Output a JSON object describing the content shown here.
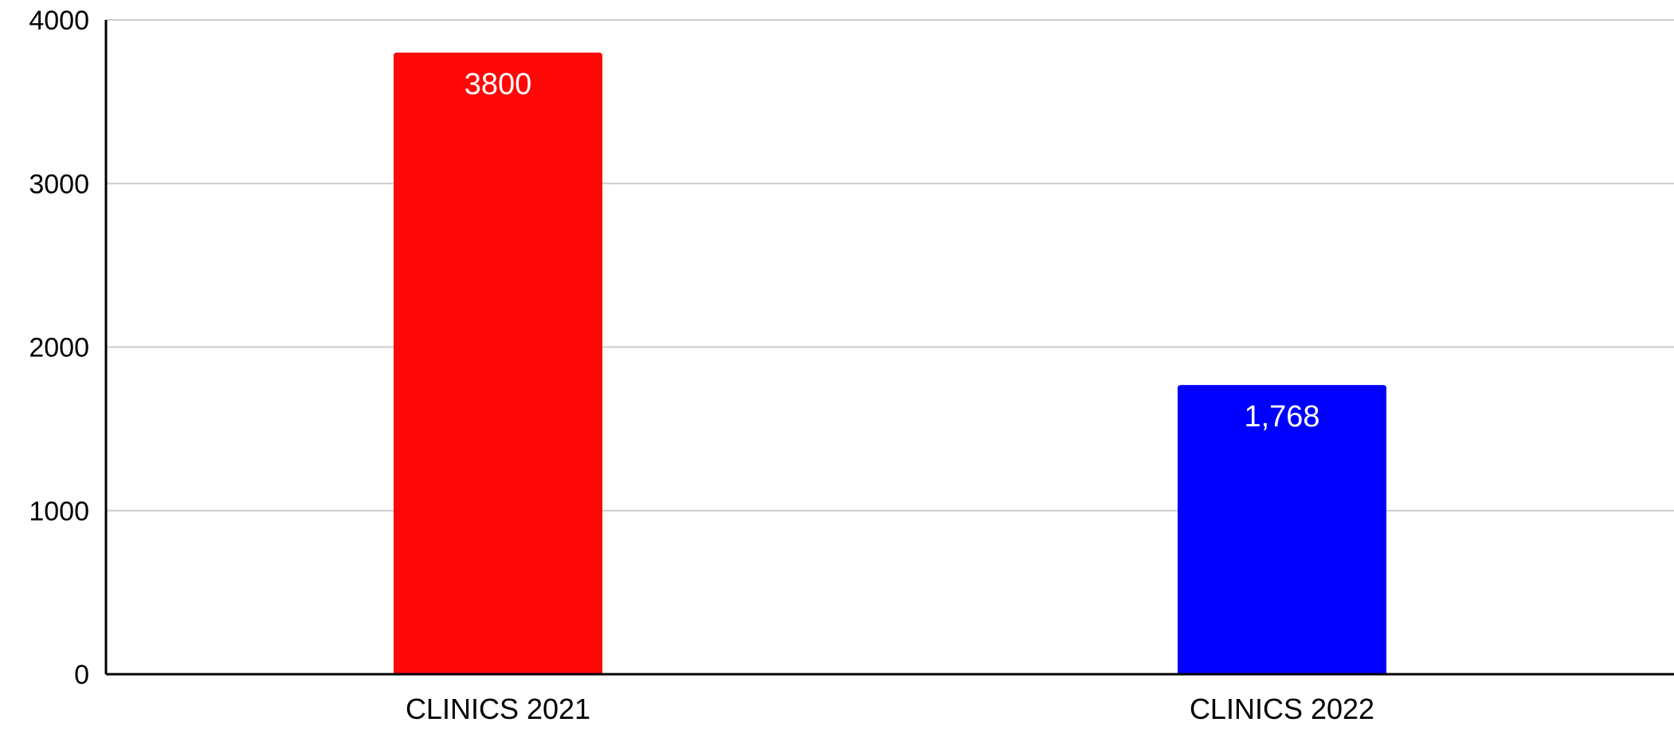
{
  "chart_data": {
    "type": "bar",
    "title": "",
    "xlabel": "",
    "ylabel": "",
    "categories": [
      "CLINICS 2021",
      "CLINICS 2022"
    ],
    "values": [
      3800,
      1768
    ],
    "data_labels": [
      "3800",
      "1,768"
    ],
    "bar_colors": [
      "#ff0707",
      "#0000ff"
    ],
    "ylim": [
      0,
      4000
    ],
    "yticks": [
      0,
      1000,
      2000,
      3000,
      4000
    ],
    "ytick_labels": [
      "0",
      "1000",
      "2000",
      "3000",
      "4000"
    ],
    "grid": true,
    "legend": "none"
  },
  "colors": {
    "gridline": "#cccccc",
    "axis": "#000000",
    "tick_text": "#000000",
    "data_label_text": "#ffffff"
  }
}
